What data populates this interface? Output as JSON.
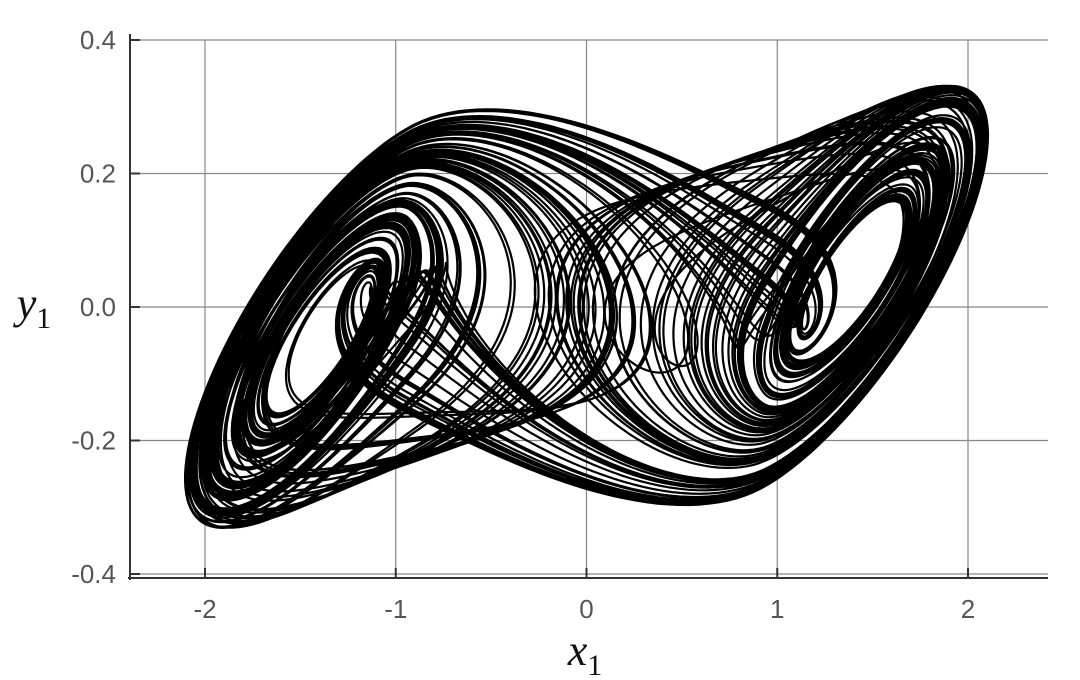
{
  "chart_data": {
    "type": "line",
    "title": "",
    "xlabel": "x",
    "xlabel_sub": "1",
    "ylabel": "y",
    "ylabel_sub": "1",
    "xlim": [
      -2.4,
      2.4
    ],
    "ylim": [
      -0.4,
      0.4
    ],
    "x_ticks": [
      -2,
      -1,
      0,
      1,
      2
    ],
    "x_tick_labels": [
      "-2",
      "-1",
      "0",
      "1",
      "2"
    ],
    "y_ticks": [
      -0.4,
      -0.2,
      0.0,
      0.2,
      0.4
    ],
    "y_tick_labels": [
      "-0.4",
      "-0.2",
      "0.0",
      "0.2",
      "0.4"
    ],
    "grid": true,
    "line_color": "#000000",
    "grid_color": "#888888",
    "series": [
      {
        "points": "chaotic double-scroll attractor trajectory (generated)",
        "left_focus": [
          -1.45,
          0.0
        ],
        "right_focus": [
          1.45,
          0.0
        ]
      }
    ]
  }
}
